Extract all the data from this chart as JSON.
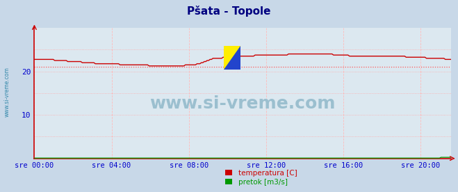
{
  "title": "Pšata - Topole",
  "title_color": "#000080",
  "title_fontsize": 11,
  "bg_color": "#c8d8e8",
  "plot_bg_color": "#dce8f0",
  "grid_color_h": "#ffaaaa",
  "grid_color_v": "#ffbbbb",
  "x_label_color": "#0000cc",
  "y_label_color": "#0000cc",
  "x_ticks": [
    0,
    240,
    480,
    720,
    960,
    1200
  ],
  "x_tick_labels": [
    "sre 00:00",
    "sre 04:00",
    "sre 08:00",
    "sre 12:00",
    "sre 16:00",
    "sre 20:00"
  ],
  "y_ticks": [
    0,
    10,
    20
  ],
  "y_tick_labels": [
    "",
    "10",
    "20"
  ],
  "ylim": [
    0,
    30
  ],
  "xlim": [
    0,
    1295
  ],
  "temp_color": "#cc0000",
  "pretok_color": "#009900",
  "avg_line_color": "#ff5555",
  "avg_line_value": 21.0,
  "watermark": "www.si-vreme.com",
  "watermark_color": "#9bbfcf",
  "legend_labels": [
    "temperatura [C]",
    "pretok [m3/s]"
  ],
  "legend_colors": [
    "#cc0000",
    "#009900"
  ],
  "side_label": "www.si-vreme.com",
  "side_label_color": "#3388aa",
  "icon_colors": [
    "#ffee00",
    "#ffcc00",
    "#1133cc",
    "#0044ff"
  ]
}
